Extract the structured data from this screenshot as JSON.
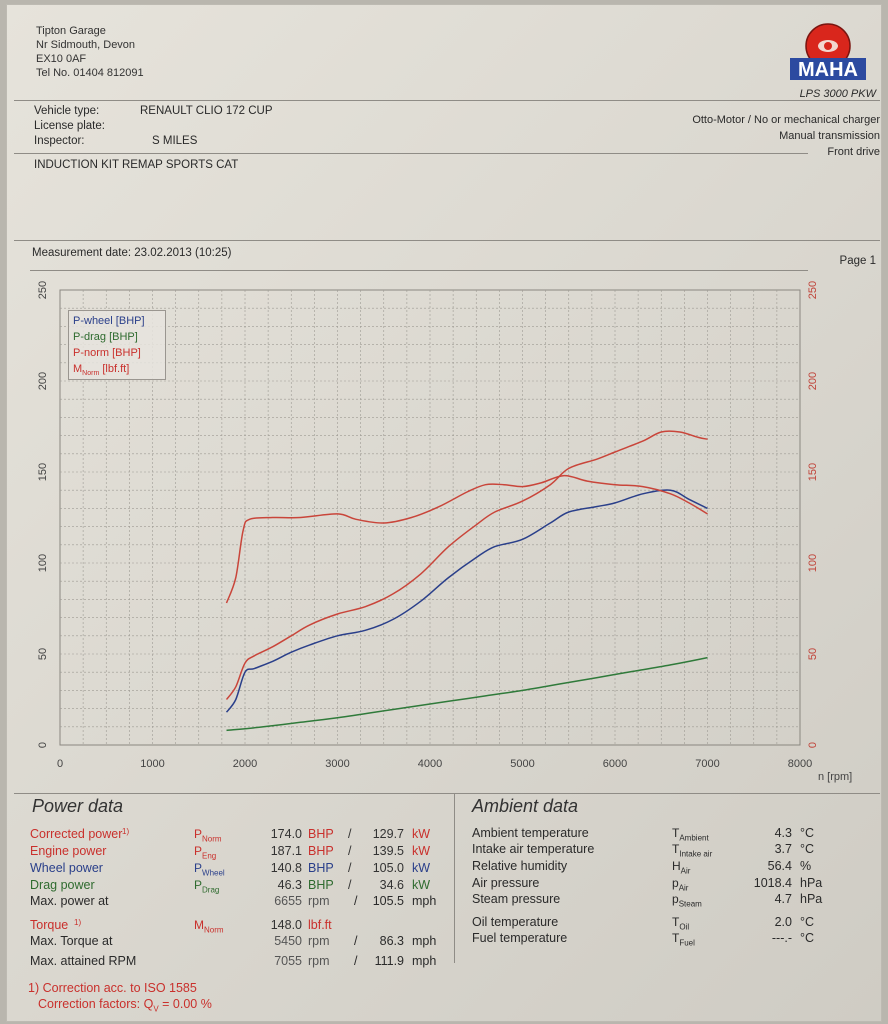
{
  "garage": {
    "name": "Tipton Garage",
    "line2": "Nr Sidmouth, Devon",
    "postcode": "EX10 0AF",
    "tel": "Tel No. 01404 812091"
  },
  "logo": {
    "brand": "MAHA",
    "model": "LPS 3000 PKW",
    "icon": "maha-logo-icon",
    "color": "#d9261c"
  },
  "vehicle": {
    "type_label": "Vehicle type:",
    "type_value": "RENAULT CLIO 172 CUP",
    "plate_label": "License plate:",
    "plate_value": "",
    "inspector_label": "Inspector:",
    "inspector_value": "S MILES",
    "description": "INDUCTION KIT REMAP SPORTS CAT",
    "engine": "Otto-Motor / No or mechanical charger",
    "transmission": "Manual transmission",
    "drive": "Front drive"
  },
  "measurement": {
    "date_text": "Measurement date: 23.02.2013 (10:25)",
    "page_text": "Page 1"
  },
  "chart_data": {
    "type": "line",
    "xlabel": "n [rpm]",
    "xlim": [
      0,
      8000
    ],
    "ylim": [
      0,
      250
    ],
    "y2lim": [
      0,
      250
    ],
    "x_ticks": [
      0,
      1000,
      2000,
      3000,
      4000,
      5000,
      6000,
      7000,
      8000
    ],
    "y_ticks": [
      0,
      50,
      100,
      150,
      200,
      250
    ],
    "y2_ticks": [
      0,
      50,
      100,
      150,
      200,
      250
    ],
    "grid": true,
    "legend_position": "top-left",
    "series": [
      {
        "name": "P-wheel [BHP]",
        "color": "#2a3f8a",
        "axis": "left",
        "x": [
          1800,
          1900,
          2000,
          2100,
          2300,
          2500,
          2700,
          3000,
          3300,
          3600,
          3900,
          4200,
          4500,
          4700,
          5000,
          5300,
          5500,
          5800,
          6000,
          6300,
          6600,
          6800,
          7000
        ],
        "y": [
          18,
          25,
          40,
          42,
          46,
          51,
          55,
          60,
          63,
          69,
          79,
          92,
          103,
          109,
          113,
          122,
          128,
          131,
          133,
          138,
          140,
          135,
          130
        ]
      },
      {
        "name": "P-drag [BHP]",
        "color": "#2f7a3a",
        "axis": "left",
        "x": [
          1800,
          2200,
          2600,
          3000,
          3400,
          3800,
          4200,
          4600,
          5000,
          5400,
          5800,
          6200,
          6600,
          7000
        ],
        "y": [
          8,
          10,
          12.5,
          15,
          18,
          21,
          24,
          27,
          30,
          33.5,
          37,
          40.5,
          44,
          48
        ]
      },
      {
        "name": "P-norm [BHP]",
        "color": "#c9453a",
        "axis": "left",
        "x": [
          1800,
          1900,
          2000,
          2100,
          2300,
          2500,
          2700,
          3000,
          3300,
          3600,
          3900,
          4200,
          4500,
          4700,
          5000,
          5300,
          5500,
          5800,
          6000,
          6300,
          6500,
          6700,
          6900,
          7000
        ],
        "y": [
          25,
          32,
          45,
          49,
          54,
          60,
          66,
          72,
          76,
          83,
          94,
          109,
          121,
          128,
          134,
          143,
          152,
          157,
          161,
          167,
          172,
          172,
          169,
          168
        ]
      },
      {
        "name": "Mₙₒᵣₘ [lbf.ft]",
        "color": "#c9453a",
        "axis": "right",
        "x": [
          1800,
          1900,
          1980,
          2050,
          2300,
          2600,
          3000,
          3200,
          3500,
          3800,
          4100,
          4400,
          4600,
          4800,
          5000,
          5200,
          5450,
          5700,
          6000,
          6300,
          6600,
          6800,
          7000
        ],
        "y": [
          78,
          92,
          118,
          124,
          125,
          125,
          127,
          124,
          122,
          125,
          131,
          139,
          143,
          143,
          142,
          144,
          148,
          145,
          143,
          142,
          138,
          133,
          127
        ]
      }
    ]
  },
  "legend": {
    "item1": "P-wheel [BHP]",
    "item2": "P-drag [BHP]",
    "item3": "P-norm [BHP]",
    "item4_main": "M",
    "item4_sub": "Norm",
    "item4_unit": " [lbf.ft]"
  },
  "power_data": {
    "title": "Power data",
    "corrected": {
      "label": "Corrected power",
      "mark": "1)",
      "sym": "P",
      "sub": "Norm",
      "bhp": "174.0",
      "bhp_unit": "BHP",
      "sep": "/",
      "kw": "129.7",
      "kw_unit": "kW"
    },
    "engine": {
      "label": "Engine power",
      "sym": "P",
      "sub": "Eng",
      "bhp": "187.1",
      "bhp_unit": "BHP",
      "sep": "/",
      "kw": "139.5",
      "kw_unit": "kW"
    },
    "wheel": {
      "label": "Wheel power",
      "sym": "P",
      "sub": "Wheel",
      "bhp": "140.8",
      "bhp_unit": "BHP",
      "sep": "/",
      "kw": "105.0",
      "kw_unit": "kW"
    },
    "drag": {
      "label": "Drag power",
      "sym": "P",
      "sub": "Drag",
      "bhp": "46.3",
      "bhp_unit": "BHP",
      "sep": "/",
      "kw": "34.6",
      "kw_unit": "kW"
    },
    "max_power_at": {
      "label": "Max. power at",
      "rpm": "6655",
      "rpm_unit": "rpm",
      "sep": "/",
      "mph": "105.5",
      "mph_unit": "mph"
    },
    "torque": {
      "label": "Torque",
      "mark": "1)",
      "sym": "M",
      "sub": "Norm",
      "value": "148.0",
      "unit": "lbf.ft"
    },
    "max_torque_at": {
      "label": "Max. Torque at",
      "rpm": "5450",
      "rpm_unit": "rpm",
      "sep": "/",
      "mph": "86.3",
      "mph_unit": "mph"
    },
    "max_rpm": {
      "label": "Max. attained RPM",
      "rpm": "7055",
      "rpm_unit": "rpm",
      "sep": "/",
      "mph": "111.9",
      "mph_unit": "mph"
    },
    "footnote1": "1) Correction acc. to ISO 1585",
    "footnote2_pre": "Correction factors: Q",
    "footnote2_sub": "V",
    "footnote2_post": " =   0.00 %"
  },
  "ambient_data": {
    "title": "Ambient data",
    "rows": [
      {
        "label": "Ambient temperature",
        "sym": "T",
        "sub": "Ambient",
        "value": "4.3",
        "unit": "°C"
      },
      {
        "label": "Intake air temperature",
        "sym": "T",
        "sub": "Intake air",
        "value": "3.7",
        "unit": "°C"
      },
      {
        "label": "Relative humidity",
        "sym": "H",
        "sub": "Air",
        "value": "56.4",
        "unit": "%"
      },
      {
        "label": "Air pressure",
        "sym": "p",
        "sub": "Air",
        "value": "1018.4",
        "unit": "hPa"
      },
      {
        "label": "Steam pressure",
        "sym": "p",
        "sub": "Steam",
        "value": "4.7",
        "unit": "hPa"
      },
      {
        "label": "Oil temperature",
        "sym": "T",
        "sub": "Oil",
        "value": "2.0",
        "unit": "°C"
      },
      {
        "label": "Fuel temperature",
        "sym": "T",
        "sub": "Fuel",
        "value": "---.-",
        "unit": "°C"
      }
    ]
  }
}
